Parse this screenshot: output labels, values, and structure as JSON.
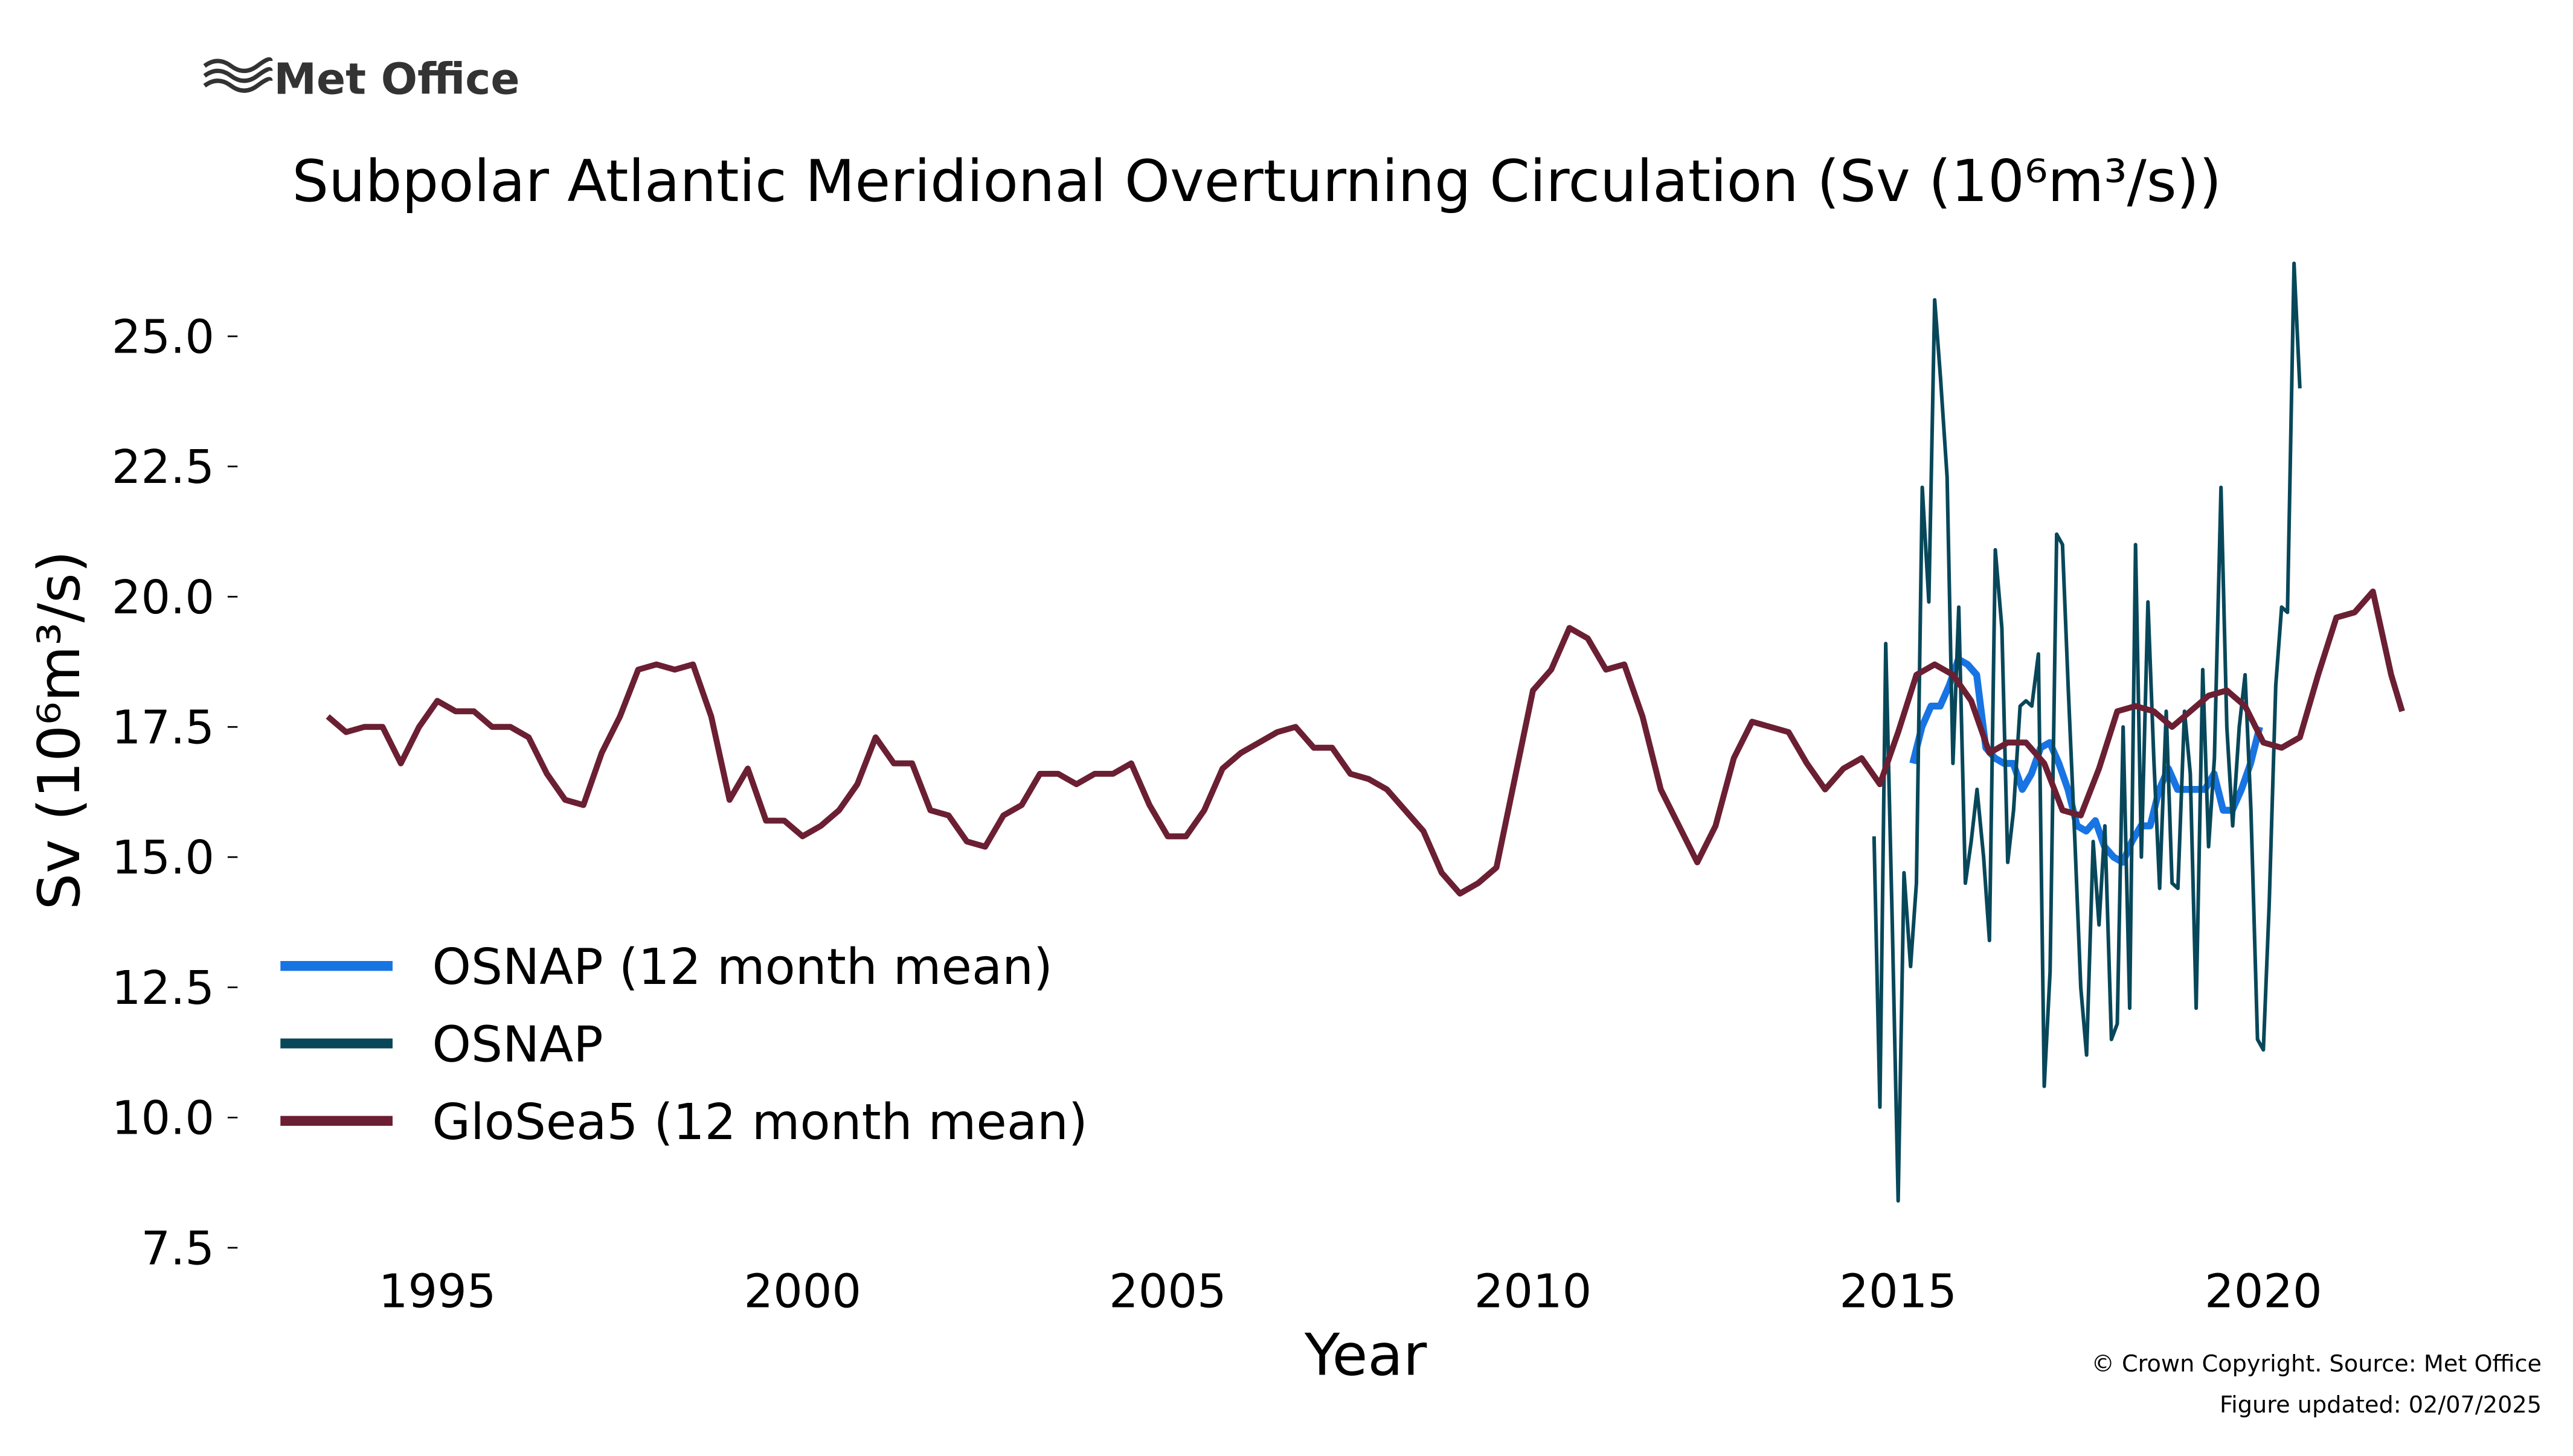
{
  "logo": "Met Office",
  "footer": [
    "© Crown Copyright. Source: Met Office",
    "Figure updated: 02/07/2025"
  ],
  "chart_data": {
    "type": "line",
    "title": "Subpolar Atlantic Meridional Overturning Circulation (Sv (10⁶m³/s))",
    "xlabel": "Year",
    "ylabel": "Sv (10⁶m³/s)",
    "xlim": [
      1992.4,
      2023.9
    ],
    "ylim": [
      7.1,
      26.7
    ],
    "xticks": [
      1995,
      2000,
      2005,
      2010,
      2015,
      2020
    ],
    "yticks": [
      {
        "value": 7.5,
        "label": "7.5"
      },
      {
        "value": 10,
        "label": "10.0"
      },
      {
        "value": 12.5,
        "label": "12.5"
      },
      {
        "value": 15,
        "label": "15.0"
      },
      {
        "value": 17.5,
        "label": "17.5"
      },
      {
        "value": 20,
        "label": "20.0"
      },
      {
        "value": 22.5,
        "label": "22.5"
      },
      {
        "value": 25,
        "label": "25.0"
      }
    ],
    "grid": false,
    "legend": "lower left",
    "series": [
      {
        "name": "OSNAP (12 month mean)",
        "color": "#1874e3",
        "x": [
          2015.2,
          2015.325,
          2015.45,
          2015.575,
          2015.7,
          2015.825,
          2015.95,
          2016.075,
          2016.2,
          2016.325,
          2016.45,
          2016.575,
          2016.7,
          2016.825,
          2016.95,
          2017.075,
          2017.2,
          2017.325,
          2017.45,
          2017.575,
          2017.7,
          2017.825,
          2017.95,
          2018.075,
          2018.2,
          2018.325,
          2018.45,
          2018.575,
          2018.7,
          2018.825,
          2018.95,
          2019.075,
          2019.2,
          2019.325,
          2019.45,
          2019.575,
          2019.7,
          2019.825,
          2019.95
        ],
        "values": [
          16.8,
          17.5,
          17.9,
          17.9,
          18.3,
          18.8,
          18.7,
          18.5,
          17.1,
          16.9,
          16.8,
          16.8,
          16.3,
          16.6,
          17.1,
          17.2,
          16.8,
          16.3,
          15.6,
          15.5,
          15.7,
          15.2,
          15.0,
          14.9,
          15.3,
          15.6,
          15.6,
          16.3,
          16.7,
          16.3,
          16.3,
          16.3,
          16.3,
          16.6,
          15.9,
          15.9,
          16.3,
          16.8,
          17.5
        ]
      },
      {
        "name": "OSNAP",
        "color": "#08475a",
        "x": [
          2014.67,
          2014.75,
          2014.83,
          2014.92,
          2015.0,
          2015.08,
          2015.17,
          2015.25,
          2015.33,
          2015.42,
          2015.5,
          2015.58,
          2015.67,
          2015.75,
          2015.83,
          2015.92,
          2016.0,
          2016.08,
          2016.17,
          2016.25,
          2016.33,
          2016.42,
          2016.5,
          2016.58,
          2016.67,
          2016.75,
          2016.83,
          2016.92,
          2017.0,
          2017.08,
          2017.17,
          2017.25,
          2017.33,
          2017.42,
          2017.5,
          2017.58,
          2017.67,
          2017.75,
          2017.83,
          2017.92,
          2018.0,
          2018.08,
          2018.17,
          2018.25,
          2018.33,
          2018.42,
          2018.5,
          2018.58,
          2018.67,
          2018.75,
          2018.83,
          2018.92,
          2019.0,
          2019.08,
          2019.17,
          2019.25,
          2019.33,
          2019.42,
          2019.5,
          2019.58,
          2019.67,
          2019.75,
          2019.83,
          2019.92,
          2020.0,
          2020.08,
          2020.17,
          2020.25,
          2020.33,
          2020.42,
          2020.5
        ],
        "values": [
          15.4,
          10.2,
          19.1,
          13.7,
          8.4,
          14.7,
          12.9,
          14.5,
          22.1,
          19.9,
          25.7,
          24.2,
          22.3,
          16.8,
          19.8,
          14.5,
          15.3,
          16.3,
          15.0,
          13.4,
          20.9,
          19.4,
          14.9,
          15.9,
          17.9,
          18.0,
          17.9,
          18.9,
          10.6,
          12.8,
          21.2,
          21.0,
          18.2,
          15.3,
          12.5,
          11.2,
          15.3,
          13.7,
          15.6,
          11.5,
          11.8,
          17.5,
          12.1,
          21.0,
          15.0,
          19.9,
          16.9,
          14.4,
          17.8,
          14.5,
          14.4,
          17.8,
          16.6,
          12.1,
          18.6,
          15.2,
          16.9,
          22.1,
          17.5,
          15.6,
          17.5,
          18.5,
          15.9,
          11.5,
          11.3,
          14.1,
          18.3,
          19.8,
          19.7,
          26.4,
          24.0
        ]
      },
      {
        "name": "GloSea5 (12 month mean)",
        "color": "#6b1f33",
        "x": [
          1993.5,
          1993.75,
          1994.0,
          1994.25,
          1994.5,
          1994.75,
          1995.0,
          1995.25,
          1995.5,
          1995.75,
          1996.0,
          1996.25,
          1996.5,
          1996.75,
          1997.0,
          1997.25,
          1997.5,
          1997.75,
          1998.0,
          1998.25,
          1998.5,
          1998.75,
          1999.0,
          1999.25,
          1999.5,
          1999.75,
          2000.0,
          2000.25,
          2000.5,
          2000.75,
          2001.0,
          2001.25,
          2001.5,
          2001.75,
          2002.0,
          2002.25,
          2002.5,
          2002.75,
          2003.0,
          2003.25,
          2003.5,
          2003.75,
          2004.0,
          2004.25,
          2004.5,
          2004.75,
          2005.0,
          2005.25,
          2005.5,
          2005.75,
          2006.0,
          2006.25,
          2006.5,
          2006.75,
          2007.0,
          2007.25,
          2007.5,
          2007.75,
          2008.0,
          2008.25,
          2008.5,
          2008.75,
          2009.0,
          2009.25,
          2009.5,
          2009.75,
          2010.0,
          2010.25,
          2010.5,
          2010.75,
          2011.0,
          2011.25,
          2011.5,
          2011.75,
          2012.0,
          2012.25,
          2012.5,
          2012.75,
          2013.0,
          2013.25,
          2013.5,
          2013.75,
          2014.0,
          2014.25,
          2014.5,
          2014.75,
          2015.0,
          2015.25,
          2015.5,
          2015.75,
          2016.0,
          2016.25,
          2016.5,
          2016.75,
          2017.0,
          2017.25,
          2017.5,
          2017.75,
          2018.0,
          2018.25,
          2018.5,
          2018.75,
          2019.0,
          2019.25,
          2019.5,
          2019.75,
          2020.0,
          2020.25,
          2020.5,
          2020.75,
          2021.0,
          2021.25,
          2021.5,
          2021.75,
          2021.9
        ],
        "values": [
          17.7,
          17.4,
          17.5,
          17.5,
          16.8,
          17.5,
          18.0,
          17.8,
          17.8,
          17.5,
          17.5,
          17.3,
          16.6,
          16.1,
          16.0,
          17.0,
          17.7,
          18.6,
          18.7,
          18.6,
          18.7,
          17.7,
          16.1,
          16.7,
          15.7,
          15.7,
          15.4,
          15.6,
          15.9,
          16.4,
          17.3,
          16.8,
          16.8,
          15.9,
          15.8,
          15.3,
          15.2,
          15.8,
          16.0,
          16.6,
          16.6,
          16.4,
          16.6,
          16.6,
          16.8,
          16.0,
          15.4,
          15.4,
          15.9,
          16.7,
          17.0,
          17.2,
          17.4,
          17.5,
          17.1,
          17.1,
          16.6,
          16.5,
          16.3,
          15.9,
          15.5,
          14.7,
          14.3,
          14.5,
          14.8,
          16.5,
          18.2,
          18.6,
          19.4,
          19.2,
          18.6,
          18.7,
          17.7,
          16.3,
          15.6,
          14.9,
          15.6,
          16.9,
          17.6,
          17.5,
          17.4,
          16.8,
          16.3,
          16.7,
          16.9,
          16.4,
          17.4,
          18.5,
          18.7,
          18.5,
          18.0,
          17.0,
          17.2,
          17.2,
          16.8,
          15.9,
          15.8,
          16.7,
          17.8,
          17.9,
          17.8,
          17.5,
          17.8,
          18.1,
          18.2,
          17.9,
          17.2,
          17.1,
          17.3,
          18.5,
          19.6,
          19.7,
          20.1,
          18.5,
          17.8
        ]
      }
    ]
  }
}
